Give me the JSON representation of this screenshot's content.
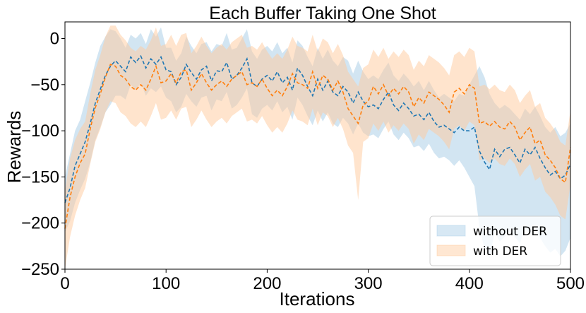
{
  "chart_data": {
    "type": "line",
    "title": "Each Buffer Taking One Shot",
    "xlabel": "Iterations",
    "ylabel": "Rewards",
    "xlim": [
      0,
      500
    ],
    "ylim": [
      -250,
      18
    ],
    "xticks": [
      0,
      100,
      200,
      300,
      400,
      500
    ],
    "yticks": [
      0,
      -50,
      -100,
      -150,
      -200,
      -250
    ],
    "xtick_labels": [
      "0",
      "100",
      "200",
      "300",
      "400",
      "500"
    ],
    "ytick_labels": [
      "0",
      "−50",
      "−100",
      "−150",
      "−200",
      "−250"
    ],
    "grid": false,
    "legend_position": "bottom-right",
    "series": [
      {
        "name": "without DER",
        "color": "#1f77b4",
        "band_color": "#a6cbe6",
        "x": [
          0,
          5,
          10,
          15,
          20,
          25,
          30,
          35,
          40,
          45,
          50,
          55,
          60,
          65,
          70,
          75,
          80,
          85,
          90,
          95,
          100,
          105,
          110,
          115,
          120,
          125,
          130,
          135,
          140,
          145,
          150,
          155,
          160,
          165,
          170,
          175,
          180,
          185,
          190,
          195,
          200,
          205,
          210,
          215,
          220,
          225,
          230,
          235,
          240,
          245,
          250,
          255,
          260,
          265,
          270,
          275,
          280,
          285,
          290,
          295,
          300,
          305,
          310,
          315,
          320,
          325,
          330,
          335,
          340,
          345,
          350,
          355,
          360,
          365,
          370,
          375,
          380,
          385,
          390,
          395,
          400,
          405,
          410,
          415,
          420,
          425,
          430,
          435,
          440,
          445,
          450,
          455,
          460,
          465,
          470,
          475,
          480,
          485,
          490,
          495,
          500
        ],
        "values": [
          -178,
          -162,
          -138,
          -125,
          -112,
          -92,
          -70,
          -55,
          -40,
          -30,
          -24,
          -30,
          -36,
          -20,
          -26,
          -19,
          -32,
          -22,
          -28,
          -20,
          -34,
          -36,
          -50,
          -42,
          -28,
          -37,
          -44,
          -34,
          -30,
          -46,
          -35,
          -36,
          -26,
          -44,
          -40,
          -32,
          -22,
          -48,
          -52,
          -44,
          -40,
          -46,
          -36,
          -48,
          -42,
          -56,
          -32,
          -40,
          -52,
          -62,
          -44,
          -56,
          -46,
          -58,
          -62,
          -52,
          -58,
          -70,
          -58,
          -68,
          -74,
          -72,
          -76,
          -66,
          -58,
          -72,
          -78,
          -70,
          -76,
          -84,
          -82,
          -88,
          -80,
          -90,
          -96,
          -94,
          -98,
          -102,
          -96,
          -100,
          -100,
          -96,
          -122,
          -134,
          -142,
          -120,
          -128,
          -120,
          -118,
          -126,
          -135,
          -120,
          -126,
          -118,
          -130,
          -140,
          -148,
          -144,
          -152,
          -148,
          -136
        ],
        "upper": [
          -150,
          -125,
          -100,
          -88,
          -68,
          -48,
          -26,
          -8,
          2,
          10,
          8,
          0,
          -10,
          4,
          0,
          6,
          -6,
          10,
          2,
          12,
          -10,
          -10,
          -24,
          -16,
          2,
          -8,
          -16,
          -6,
          -4,
          -14,
          -6,
          -8,
          6,
          -12,
          -10,
          0,
          10,
          -14,
          -22,
          -12,
          -8,
          -14,
          -4,
          -16,
          -10,
          -26,
          -2,
          -8,
          -20,
          -30,
          -10,
          -22,
          -12,
          -24,
          -30,
          -20,
          -24,
          -38,
          -24,
          -36,
          -44,
          -40,
          -44,
          -34,
          -26,
          -40,
          -46,
          -38,
          -44,
          -52,
          -46,
          -56,
          -46,
          -56,
          -64,
          -60,
          -64,
          -68,
          -60,
          -62,
          -50,
          -40,
          -30,
          -42,
          -60,
          -70,
          -76,
          -72,
          -76,
          -82,
          -88,
          -76,
          -82,
          -74,
          -84,
          -96,
          -102,
          -96,
          -106,
          -102,
          -92
        ],
        "lower": [
          -210,
          -198,
          -178,
          -164,
          -152,
          -134,
          -110,
          -96,
          -80,
          -72,
          -62,
          -62,
          -66,
          -50,
          -56,
          -48,
          -62,
          -54,
          -58,
          -52,
          -64,
          -68,
          -80,
          -74,
          -60,
          -68,
          -74,
          -64,
          -62,
          -78,
          -66,
          -68,
          -58,
          -76,
          -72,
          -64,
          -54,
          -82,
          -86,
          -76,
          -72,
          -78,
          -68,
          -80,
          -74,
          -88,
          -64,
          -72,
          -84,
          -94,
          -78,
          -90,
          -80,
          -92,
          -96,
          -86,
          -92,
          -104,
          -92,
          -102,
          -106,
          -104,
          -108,
          -98,
          -90,
          -104,
          -110,
          -102,
          -108,
          -118,
          -116,
          -122,
          -114,
          -124,
          -130,
          -128,
          -132,
          -138,
          -132,
          -140,
          -150,
          -160,
          -205,
          -228,
          -238,
          -210,
          -220,
          -215,
          -208,
          -215,
          -222,
          -205,
          -212,
          -204,
          -216,
          -225,
          -232,
          -228,
          -236,
          -230,
          -216
        ]
      },
      {
        "name": "with DER",
        "color": "#ff7f0e",
        "band_color": "#ffc99c",
        "x": [
          0,
          5,
          10,
          15,
          20,
          25,
          30,
          35,
          40,
          45,
          50,
          55,
          60,
          65,
          70,
          75,
          80,
          85,
          90,
          95,
          100,
          105,
          110,
          115,
          120,
          125,
          130,
          135,
          140,
          145,
          150,
          155,
          160,
          165,
          170,
          175,
          180,
          185,
          190,
          195,
          200,
          205,
          210,
          215,
          220,
          225,
          230,
          235,
          240,
          245,
          250,
          255,
          260,
          265,
          270,
          275,
          280,
          285,
          290,
          295,
          300,
          305,
          310,
          315,
          320,
          325,
          330,
          335,
          340,
          345,
          350,
          355,
          360,
          365,
          370,
          375,
          380,
          385,
          390,
          395,
          400,
          405,
          410,
          415,
          420,
          425,
          430,
          435,
          440,
          445,
          450,
          455,
          460,
          465,
          470,
          475,
          480,
          485,
          490,
          495,
          500
        ],
        "values": [
          -206,
          -172,
          -150,
          -135,
          -125,
          -98,
          -75,
          -60,
          -42,
          -28,
          -30,
          -40,
          -44,
          -52,
          -56,
          -50,
          -56,
          -44,
          -30,
          -48,
          -46,
          -38,
          -48,
          -36,
          -34,
          -56,
          -48,
          -38,
          -48,
          -56,
          -50,
          -46,
          -52,
          -44,
          -40,
          -36,
          -50,
          -48,
          -52,
          -44,
          -54,
          -62,
          -56,
          -62,
          -52,
          -38,
          -48,
          -50,
          -54,
          -36,
          -54,
          -40,
          -44,
          -56,
          -46,
          -58,
          -76,
          -84,
          -92,
          -72,
          -68,
          -52,
          -60,
          -50,
          -62,
          -54,
          -60,
          -52,
          -58,
          -74,
          -64,
          -70,
          -58,
          -62,
          -66,
          -72,
          -80,
          -58,
          -54,
          -60,
          -50,
          -54,
          -92,
          -90,
          -95,
          -90,
          -96,
          -98,
          -90,
          -96,
          -110,
          -102,
          -96,
          -114,
          -110,
          -126,
          -132,
          -140,
          -152,
          -156,
          -118
        ],
        "upper": [
          -165,
          -130,
          -110,
          -98,
          -90,
          -60,
          -34,
          -18,
          2,
          14,
          14,
          4,
          -2,
          -10,
          -14,
          -8,
          -12,
          -2,
          12,
          -8,
          -6,
          4,
          -8,
          4,
          6,
          -16,
          -8,
          2,
          -8,
          -16,
          -10,
          -6,
          -12,
          -4,
          0,
          4,
          -10,
          -8,
          -12,
          -4,
          -14,
          -22,
          -16,
          -22,
          -12,
          2,
          -8,
          -10,
          -14,
          4,
          -14,
          0,
          -4,
          -16,
          -6,
          -18,
          -36,
          -44,
          -52,
          -32,
          -28,
          -12,
          -20,
          -10,
          -22,
          -14,
          -20,
          -12,
          -18,
          -34,
          -24,
          -30,
          -18,
          -22,
          -26,
          -32,
          -40,
          -18,
          -14,
          -20,
          -10,
          -14,
          -52,
          -50,
          -55,
          -50,
          -56,
          -58,
          -50,
          -56,
          -70,
          -62,
          -56,
          -74,
          -70,
          -86,
          -92,
          -100,
          -112,
          -116,
          -78
        ],
        "lower": [
          -250,
          -215,
          -192,
          -175,
          -162,
          -136,
          -112,
          -98,
          -80,
          -68,
          -70,
          -80,
          -84,
          -92,
          -96,
          -90,
          -96,
          -84,
          -70,
          -88,
          -86,
          -78,
          -88,
          -76,
          -74,
          -96,
          -88,
          -78,
          -88,
          -96,
          -90,
          -86,
          -92,
          -84,
          -80,
          -76,
          -90,
          -88,
          -92,
          -84,
          -94,
          -102,
          -96,
          -102,
          -92,
          -78,
          -88,
          -90,
          -94,
          -76,
          -94,
          -80,
          -84,
          -96,
          -86,
          -98,
          -116,
          -124,
          -175,
          -112,
          -108,
          -92,
          -100,
          -90,
          -102,
          -94,
          -100,
          -92,
          -98,
          -114,
          -104,
          -110,
          -98,
          -102,
          -106,
          -112,
          -120,
          -98,
          -94,
          -100,
          -90,
          -94,
          -132,
          -130,
          -135,
          -130,
          -136,
          -138,
          -130,
          -136,
          -150,
          -142,
          -136,
          -154,
          -150,
          -166,
          -172,
          -180,
          -192,
          -196,
          -158
        ]
      }
    ]
  }
}
